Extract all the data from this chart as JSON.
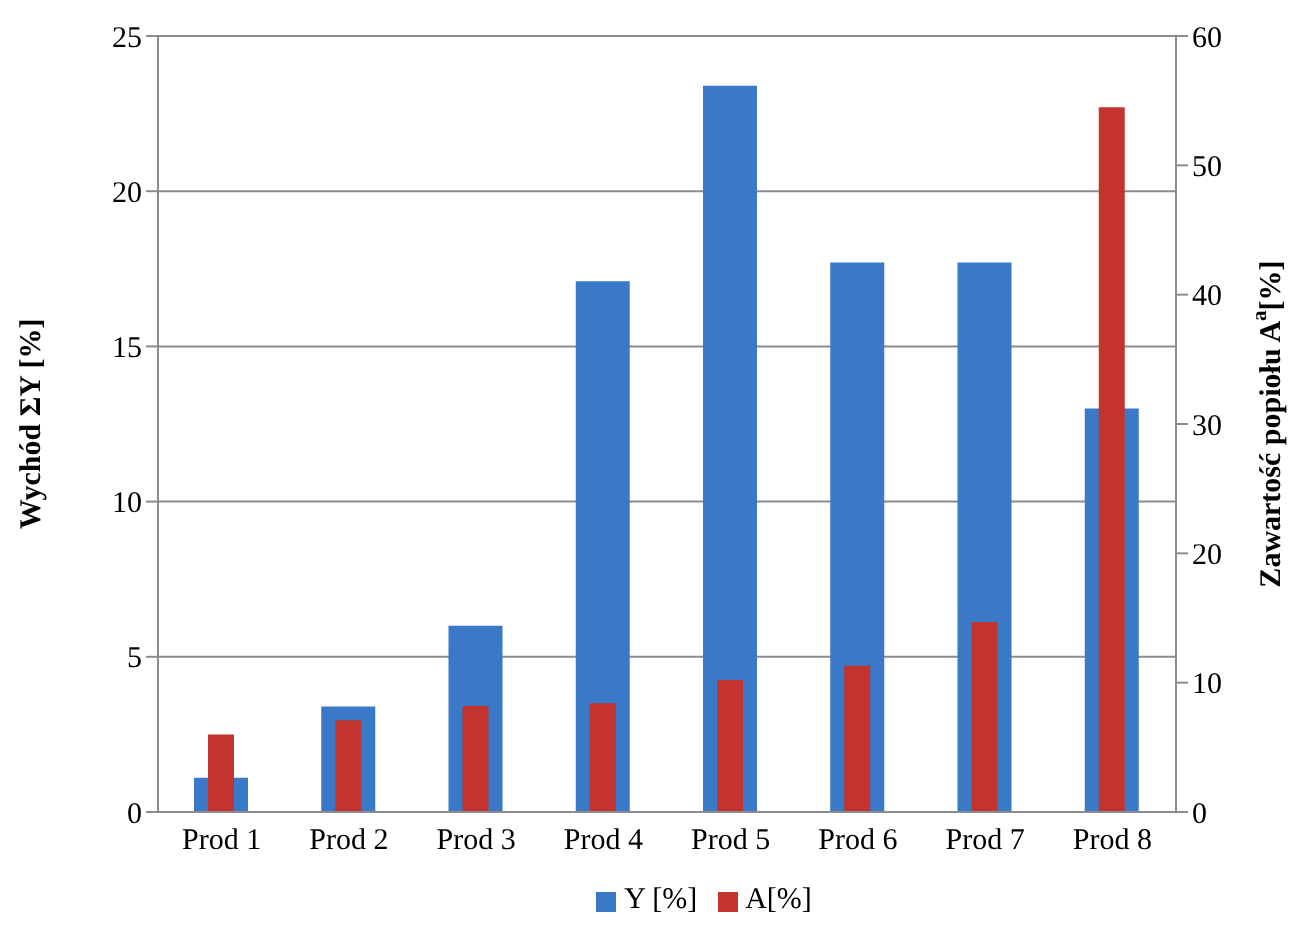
{
  "chart_data": {
    "type": "bar",
    "categories": [
      "Prod 1",
      "Prod 2",
      "Prod 3",
      "Prod 4",
      "Prod 5",
      "Prod 6",
      "Prod 7",
      "Prod 8"
    ],
    "series": [
      {
        "name": "Y [%]",
        "color": "#3a78c8",
        "values": [
          1.1,
          3.4,
          6.0,
          17.1,
          23.4,
          17.7,
          17.7,
          13.0
        ]
      },
      {
        "name": "A[%]",
        "color": "#c4342f",
        "values": [
          6.0,
          7.1,
          8.2,
          8.4,
          10.2,
          11.3,
          14.7,
          54.5
        ],
        "axis": "y2"
      }
    ],
    "ylabel": "Wychód ΣY [%]",
    "y2label": "Zawartość popiołu A$^{a}$[%]",
    "ylim": [
      0,
      25
    ],
    "yticks": [
      0,
      5,
      10,
      15,
      20,
      25
    ],
    "y2lim": [
      0,
      60
    ],
    "y2ticks": [
      0,
      10,
      20,
      30,
      40,
      50,
      60
    ],
    "grid": "y",
    "legend": "bottom"
  }
}
